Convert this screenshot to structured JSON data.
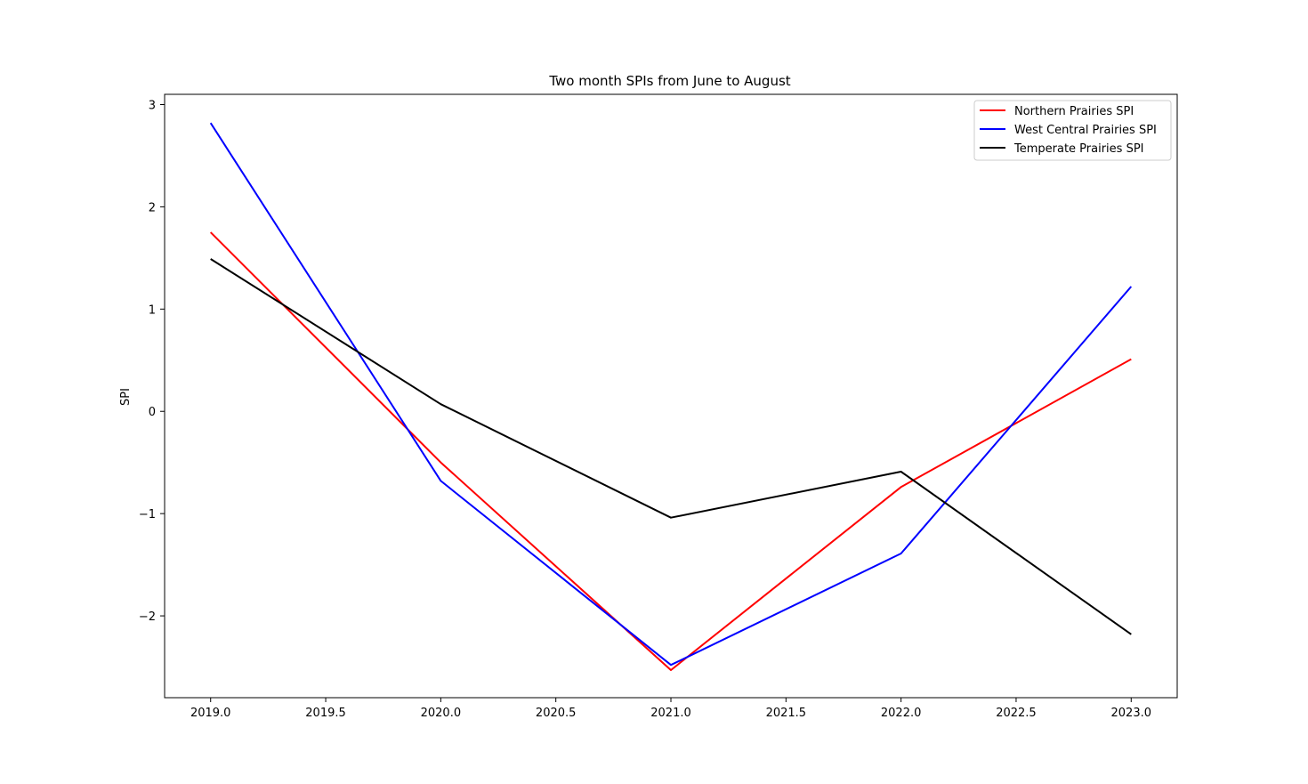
{
  "chart_data": {
    "type": "line",
    "title": "Two month SPIs from June to August",
    "xlabel": "",
    "ylabel": "SPI",
    "x": [
      2019.0,
      2020.0,
      2021.0,
      2022.0,
      2023.0
    ],
    "xlim": [
      2018.8,
      2023.2
    ],
    "ylim": [
      -2.8,
      3.1
    ],
    "xticks": [
      2019.0,
      2019.5,
      2020.0,
      2020.5,
      2021.0,
      2021.5,
      2022.0,
      2022.5,
      2023.0
    ],
    "xtick_labels": [
      "2019.0",
      "2019.5",
      "2020.0",
      "2020.5",
      "2021.0",
      "2021.5",
      "2022.0",
      "2022.5",
      "2023.0"
    ],
    "yticks": [
      -2,
      -1,
      0,
      1,
      2,
      3
    ],
    "ytick_labels": [
      "−2",
      "−1",
      "0",
      "1",
      "2",
      "3"
    ],
    "grid": false,
    "legend_position": "top-right",
    "series": [
      {
        "name": "Northern Prairies SPI",
        "color": "#ff0000",
        "values": [
          1.75,
          -0.5,
          -2.53,
          -0.74,
          0.51
        ]
      },
      {
        "name": "West Central Prairies SPI",
        "color": "#0000ff",
        "values": [
          2.82,
          -0.68,
          -2.48,
          -1.39,
          1.22
        ]
      },
      {
        "name": "Temperate Prairies SPI",
        "color": "#000000",
        "values": [
          1.49,
          0.07,
          -1.04,
          -0.59,
          -2.18
        ]
      }
    ]
  }
}
